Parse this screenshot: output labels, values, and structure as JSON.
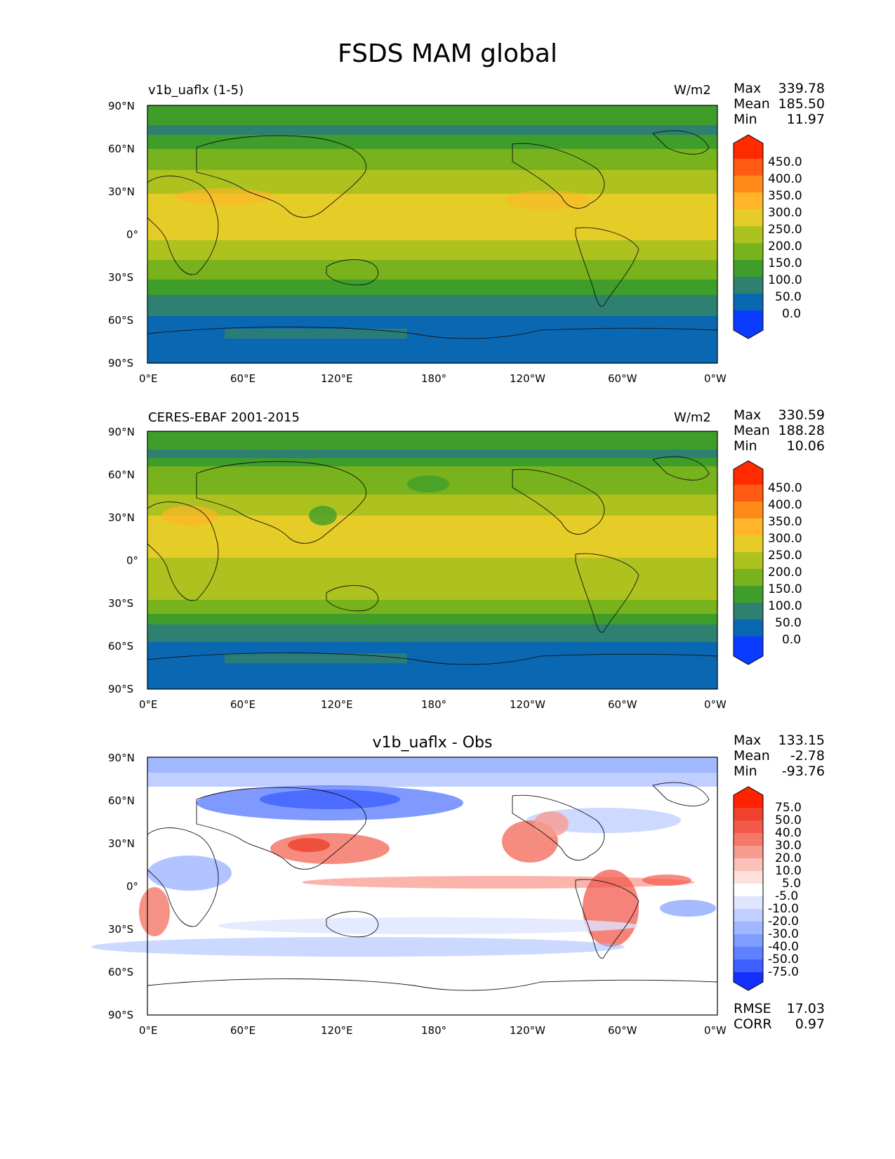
{
  "figure": {
    "title": "FSDS MAM global"
  },
  "panels": [
    {
      "id": "test",
      "title_left": "v1b_uaflx (1-5)",
      "title_right": "W/m2",
      "stats": {
        "max_label": "Max",
        "max": "339.78",
        "mean_label": "Mean",
        "mean": "185.50",
        "min_label": "Min",
        "min": "11.97"
      }
    },
    {
      "id": "ref",
      "title_left": "CERES-EBAF 2001-2015",
      "title_right": "W/m2",
      "stats": {
        "max_label": "Max",
        "max": "330.59",
        "mean_label": "Mean",
        "mean": "188.28",
        "min_label": "Min",
        "min": "10.06"
      }
    },
    {
      "id": "diff",
      "title_center": "v1b_uaflx - Obs",
      "stats": {
        "max_label": "Max",
        "max": "133.15",
        "mean_label": "Mean",
        "mean": "-2.78",
        "min_label": "Min",
        "min": "-93.76"
      },
      "metrics": {
        "rmse_label": "RMSE",
        "rmse": "17.03",
        "corr_label": "CORR",
        "corr": "0.97"
      }
    }
  ],
  "axes": {
    "lat_ticks": [
      "90°N",
      "60°N",
      "30°N",
      "0°",
      "30°S",
      "60°S",
      "90°S"
    ],
    "lon_ticks": [
      "0°E",
      "60°E",
      "120°E",
      "180°",
      "120°W",
      "60°W",
      "0°W"
    ]
  },
  "colorbars": {
    "field": {
      "labels": [
        "450.0",
        "400.0",
        "350.0",
        "300.0",
        "250.0",
        "200.0",
        "150.0",
        "100.0",
        "50.0",
        "0.0"
      ],
      "colors_top_to_bottom": [
        "#ff2a00",
        "#ff5a14",
        "#ff8a1a",
        "#ffb42a",
        "#e6cc26",
        "#adc21f",
        "#78b21c",
        "#3f9d2a",
        "#2e8070",
        "#0a68b2",
        "#0a3cff"
      ]
    },
    "diff": {
      "labels": [
        "75.0",
        "50.0",
        "40.0",
        "30.0",
        "20.0",
        "10.0",
        "5.0",
        "-5.0",
        "-10.0",
        "-20.0",
        "-30.0",
        "-40.0",
        "-50.0",
        "-75.0"
      ],
      "colors_top_to_bottom": [
        "#ff2200",
        "#f0402e",
        "#f35a4c",
        "#f57868",
        "#f89b8f",
        "#fbc0b8",
        "#fde0dc",
        "#ffffff",
        "#dde5ff",
        "#c0cfff",
        "#a0b8ff",
        "#7f9cff",
        "#5f80ff",
        "#3f60ff",
        "#1430ff"
      ]
    }
  },
  "chart_data": {
    "type": "heatmap",
    "title": "FSDS MAM global",
    "maps": [
      {
        "name": "v1b_uaflx (1-5)",
        "units": "W/m2",
        "max": 339.78,
        "mean": 185.5,
        "min": 11.97,
        "lat_bands_north_to_south": [
          {
            "lat": 80,
            "value": 125
          },
          {
            "lat": 60,
            "value": 150
          },
          {
            "lat": 45,
            "value": 175
          },
          {
            "lat": 30,
            "value": 260
          },
          {
            "lat": 15,
            "value": 285
          },
          {
            "lat": 0,
            "value": 240
          },
          {
            "lat": -15,
            "value": 230
          },
          {
            "lat": -30,
            "value": 215
          },
          {
            "lat": -45,
            "value": 120
          },
          {
            "lat": -60,
            "value": 45
          },
          {
            "lat": -80,
            "value": 30
          }
        ]
      },
      {
        "name": "CERES-EBAF 2001-2015",
        "units": "W/m2",
        "max": 330.59,
        "mean": 188.28,
        "min": 10.06,
        "lat_bands_north_to_south": [
          {
            "lat": 80,
            "value": 130
          },
          {
            "lat": 60,
            "value": 160
          },
          {
            "lat": 45,
            "value": 185
          },
          {
            "lat": 30,
            "value": 245
          },
          {
            "lat": 15,
            "value": 270
          },
          {
            "lat": 0,
            "value": 225
          },
          {
            "lat": -15,
            "value": 225
          },
          {
            "lat": -30,
            "value": 210
          },
          {
            "lat": -45,
            "value": 130
          },
          {
            "lat": -60,
            "value": 60
          },
          {
            "lat": -80,
            "value": 30
          }
        ]
      },
      {
        "name": "v1b_uaflx - Obs",
        "max": 133.15,
        "mean": -2.78,
        "min": -93.76,
        "rmse": 17.03,
        "corr": 0.97,
        "lat_bands_north_to_south": [
          {
            "lat": 80,
            "value": -12
          },
          {
            "lat": 60,
            "value": -25
          },
          {
            "lat": 30,
            "value": 15
          },
          {
            "lat": 0,
            "value": 12
          },
          {
            "lat": -20,
            "value": 5
          },
          {
            "lat": -40,
            "value": -15
          },
          {
            "lat": -60,
            "value": 0
          },
          {
            "lat": -80,
            "value": 0
          }
        ]
      }
    ],
    "colorbar_levels": [
      0,
      50,
      100,
      150,
      200,
      250,
      300,
      350,
      400,
      450
    ],
    "diff_levels": [
      -75,
      -50,
      -40,
      -30,
      -20,
      -10,
      -5,
      5,
      10,
      20,
      30,
      40,
      50,
      75
    ],
    "xlim": [
      0,
      360
    ],
    "ylim": [
      -90,
      90
    ]
  }
}
